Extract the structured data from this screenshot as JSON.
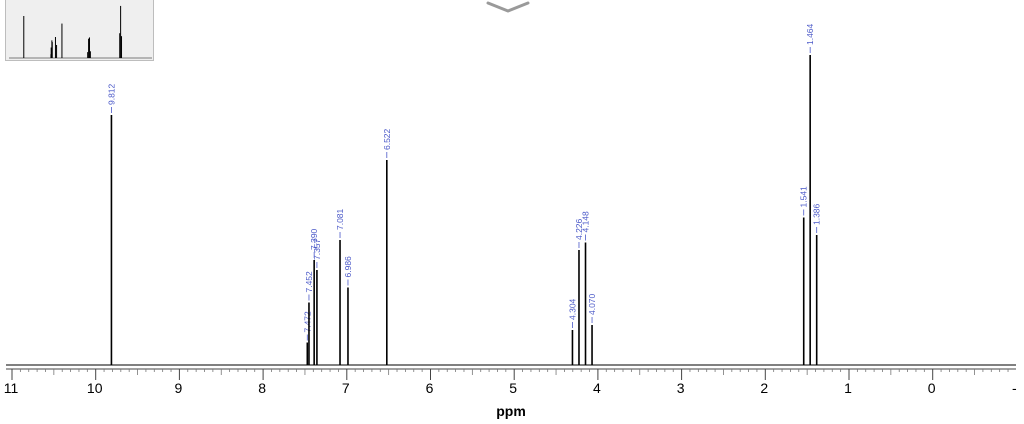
{
  "chart_data": {
    "type": "line",
    "xlabel": "ppm",
    "xlim": [
      11.1,
      -1.0
    ],
    "x_ticks": [
      11,
      10,
      9,
      8,
      7,
      6,
      5,
      4,
      3,
      2,
      1,
      0
    ],
    "peaks": [
      {
        "ppm": 9.812,
        "intensity": 1.0,
        "label": "9.812"
      },
      {
        "ppm": 7.472,
        "intensity": 0.09,
        "label": "7.472"
      },
      {
        "ppm": 7.452,
        "intensity": 0.25,
        "label": "7.452"
      },
      {
        "ppm": 7.39,
        "intensity": 0.42,
        "label": "7.390"
      },
      {
        "ppm": 7.357,
        "intensity": 0.38,
        "label": "7.357"
      },
      {
        "ppm": 7.081,
        "intensity": 0.5,
        "label": "7.081"
      },
      {
        "ppm": 6.986,
        "intensity": 0.31,
        "label": "6.986"
      },
      {
        "ppm": 6.522,
        "intensity": 0.82,
        "label": "6.522"
      },
      {
        "ppm": 4.304,
        "intensity": 0.14,
        "label": "4.304"
      },
      {
        "ppm": 4.226,
        "intensity": 0.46,
        "label": "4.226"
      },
      {
        "ppm": 4.148,
        "intensity": 0.49,
        "label": "4.148"
      },
      {
        "ppm": 4.07,
        "intensity": 0.16,
        "label": "4.070"
      },
      {
        "ppm": 1.541,
        "intensity": 0.59,
        "label": "1.541"
      },
      {
        "ppm": 1.464,
        "intensity": 1.24,
        "label": "1.464"
      },
      {
        "ppm": 1.386,
        "intensity": 0.52,
        "label": "1.386"
      }
    ],
    "colors": {
      "spectrum": "#000000",
      "peak_label": "#4a58c8",
      "axis": "#000000"
    }
  },
  "overview": {
    "icon": "chevron-down-icon"
  }
}
